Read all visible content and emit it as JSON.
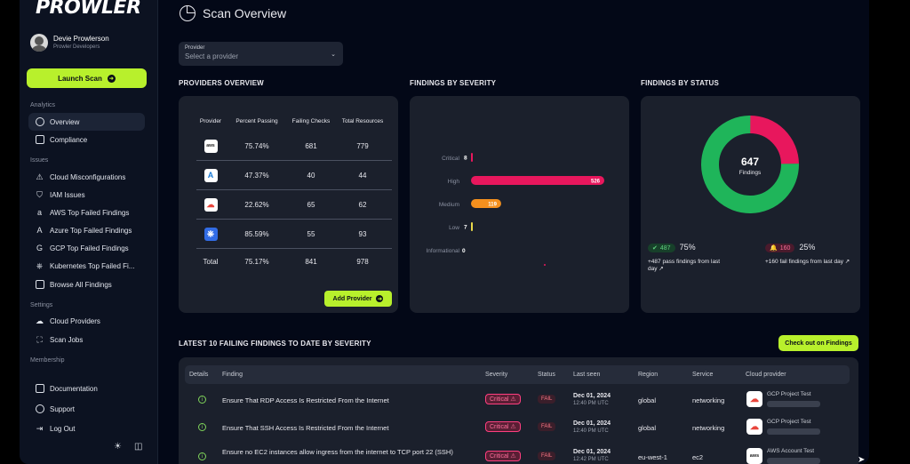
{
  "brand": "PROWLER",
  "user": {
    "name": "Devie Prowlerson",
    "org": "Prowler Developers"
  },
  "launch_label": "Launch Scan",
  "sections": {
    "analytics": "Analytics",
    "issues": "Issues",
    "settings": "Settings",
    "membership": "Membership"
  },
  "nav": {
    "analytics": [
      {
        "label": "Overview",
        "icon": "pie-chart-icon"
      },
      {
        "label": "Compliance",
        "icon": "document-icon"
      }
    ],
    "issues": [
      {
        "label": "Cloud Misconfigurations",
        "icon": "warning-icon"
      },
      {
        "label": "IAM Issues",
        "icon": "shield-icon"
      },
      {
        "label": "AWS Top Failed Findings",
        "icon": "amazon-icon"
      },
      {
        "label": "Azure Top Failed Findings",
        "icon": "azure-icon"
      },
      {
        "label": "GCP Top Failed Findings",
        "icon": "google-icon"
      },
      {
        "label": "Kubernetes Top Failed Fi...",
        "icon": "kubernetes-icon"
      },
      {
        "label": "Browse All Findings",
        "icon": "list-icon"
      }
    ],
    "settings": [
      {
        "label": "Cloud Providers",
        "icon": "cloud-icon"
      },
      {
        "label": "Scan Jobs",
        "icon": "scan-icon"
      }
    ],
    "bottom": [
      {
        "label": "Documentation",
        "icon": "book-icon"
      },
      {
        "label": "Support",
        "icon": "help-icon"
      },
      {
        "label": "Log Out",
        "icon": "logout-icon"
      }
    ]
  },
  "page_title": "Scan Overview",
  "provider_select": {
    "label": "Provider",
    "placeholder": "Select a provider"
  },
  "titles": {
    "providers": "PROVIDERS OVERVIEW",
    "severity": "FINDINGS BY SEVERITY",
    "status": "FINDINGS BY STATUS",
    "latest": "LATEST 10 FAILING FINDINGS TO DATE BY SEVERITY"
  },
  "providers_table": {
    "headers": [
      "Provider",
      "Percent Passing",
      "Failing Checks",
      "Total Resources"
    ],
    "rows": [
      {
        "logo": "aws",
        "percent": "75.74%",
        "failing": "681",
        "total": "779"
      },
      {
        "logo": "azure",
        "percent": "47.37%",
        "failing": "40",
        "total": "44"
      },
      {
        "logo": "gcp",
        "percent": "22.62%",
        "failing": "65",
        "total": "62"
      },
      {
        "logo": "k8s",
        "percent": "85.59%",
        "failing": "55",
        "total": "93"
      }
    ],
    "total": {
      "label": "Total",
      "percent": "75.17%",
      "failing": "841",
      "total": "978"
    }
  },
  "add_provider_label": "Add Provider",
  "chart_data": [
    {
      "type": "bar",
      "orientation": "horizontal",
      "categories": [
        "Critical",
        "High",
        "Medium",
        "Low",
        "Informational"
      ],
      "values": [
        8,
        526,
        119,
        7,
        0
      ],
      "colors": [
        "#e8175d",
        "#e8175d",
        "#f5901e",
        "#e8d84a",
        "#888888"
      ],
      "title": "",
      "xlabel": "",
      "ylabel": "",
      "grid": false
    },
    {
      "type": "pie",
      "categories": [
        "pass",
        "fail"
      ],
      "values": [
        487,
        160
      ],
      "colors": [
        "#1fb55a",
        "#e8175d"
      ],
      "center_value": "647",
      "center_label": "Findings",
      "title": ""
    }
  ],
  "status": {
    "pass": {
      "count": "487",
      "pct": "75%",
      "note": "+487 pass findings from last day"
    },
    "fail": {
      "count": "160",
      "pct": "25%",
      "note": "+160 fail findings from last day"
    }
  },
  "checkout_label": "Check out on Findings",
  "findings_table": {
    "headers": [
      "Details",
      "Finding",
      "Severity",
      "Status",
      "Last seen",
      "Region",
      "Service",
      "Cloud provider"
    ],
    "rows": [
      {
        "finding": "Ensure That RDP Access Is Restricted From the Internet",
        "severity": "Critical",
        "status": "FAIL",
        "date": "Dec 01, 2024",
        "time": "12:40 PM UTC",
        "region": "global",
        "service": "networking",
        "provider_logo": "gcp",
        "provider_name": "GCP Project Test"
      },
      {
        "finding": "Ensure That SSH Access Is Restricted From the Internet",
        "severity": "Critical",
        "status": "FAIL",
        "date": "Dec 01, 2024",
        "time": "12:40 PM UTC",
        "region": "global",
        "service": "networking",
        "provider_logo": "gcp",
        "provider_name": "GCP Project Test"
      },
      {
        "finding": "Ensure no EC2 instances allow ingress from the internet to TCP port 22 (SSH)",
        "severity": "Critical",
        "status": "FAIL",
        "date": "Dec 01, 2024",
        "time": "12:42 PM UTC",
        "region": "eu-west-1",
        "service": "ec2",
        "provider_logo": "aws",
        "provider_name": "AWS Account Test"
      }
    ]
  }
}
